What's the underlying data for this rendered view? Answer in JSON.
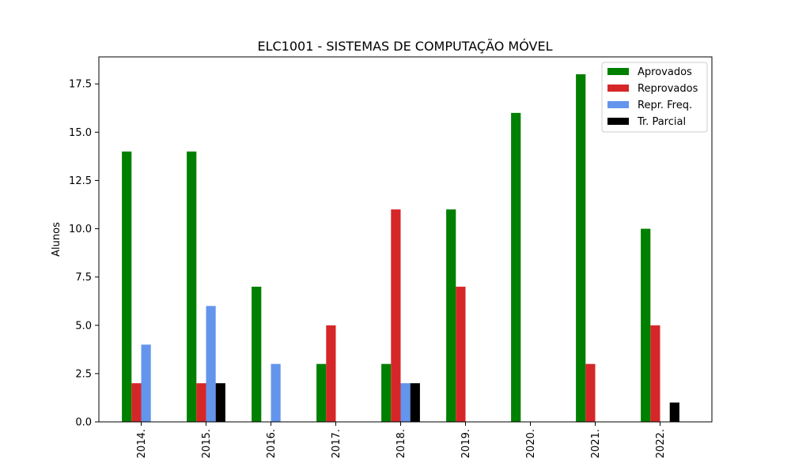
{
  "chart_data": {
    "type": "bar",
    "title": "ELC1001 - SISTEMAS DE COMPUTAÇÃO MÓVEL",
    "xlabel": "",
    "ylabel": "Alunos",
    "categories": [
      "2014.",
      "2015.",
      "2016.",
      "2017.",
      "2018.",
      "2019.",
      "2020.",
      "2021.",
      "2022."
    ],
    "series": [
      {
        "name": "Aprovados",
        "color": "#008000",
        "values": [
          14,
          14,
          7,
          3,
          3,
          11,
          16,
          18,
          10
        ]
      },
      {
        "name": "Reprovados",
        "color": "#d62728",
        "values": [
          2,
          2,
          0,
          5,
          11,
          7,
          0,
          3,
          5
        ]
      },
      {
        "name": "Repr. Freq.",
        "color": "#6495ed",
        "values": [
          4,
          6,
          3,
          0,
          2,
          0,
          0,
          0,
          0
        ]
      },
      {
        "name": "Tr. Parcial",
        "color": "#000000",
        "values": [
          0,
          2,
          0,
          0,
          2,
          0,
          0,
          0,
          1
        ]
      }
    ],
    "ylim": [
      0,
      18.9
    ],
    "yticks": [
      0.0,
      2.5,
      5.0,
      7.5,
      10.0,
      12.5,
      15.0,
      17.5
    ],
    "ytick_labels": [
      "0.0",
      "2.5",
      "5.0",
      "7.5",
      "10.0",
      "12.5",
      "15.0",
      "17.5"
    ],
    "grid": false,
    "legend_position": "top-right"
  }
}
